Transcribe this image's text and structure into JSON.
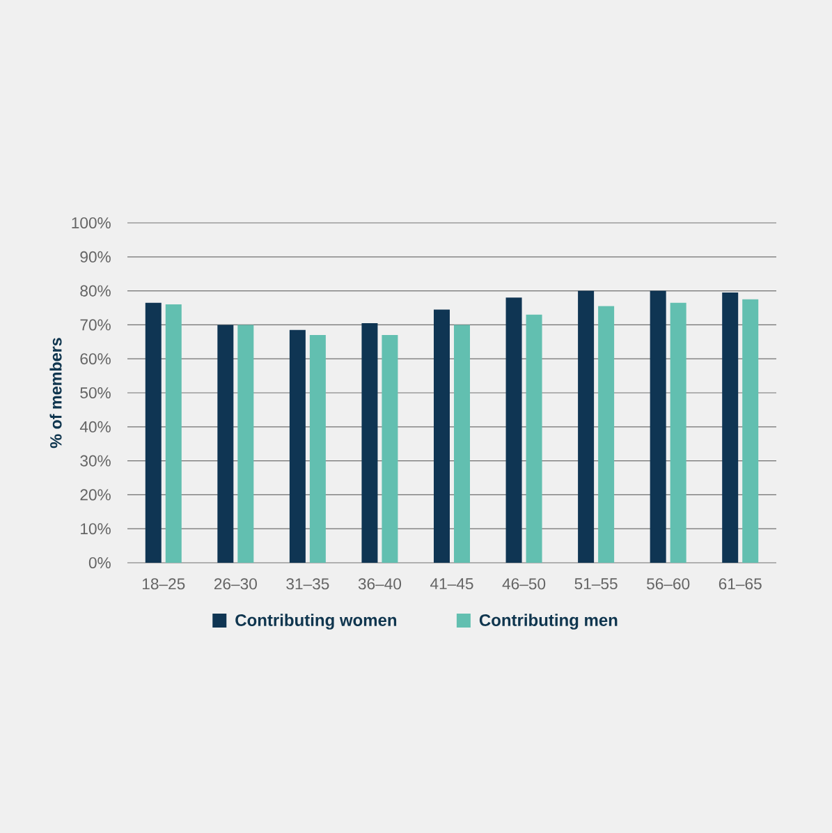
{
  "chart_data": {
    "type": "bar",
    "ylabel": "% of members",
    "categories": [
      "18–25",
      "26–30",
      "31–35",
      "36–40",
      "41–45",
      "46–50",
      "51–55",
      "56–60",
      "61–65"
    ],
    "series": [
      {
        "name": "Contributing women",
        "color": "#0f3553",
        "values": [
          76.5,
          70,
          68.5,
          70.5,
          74.5,
          78,
          80,
          80,
          79.5
        ]
      },
      {
        "name": "Contributing men",
        "color": "#62bfb0",
        "values": [
          76,
          70,
          67,
          67,
          70,
          73,
          75.5,
          76.5,
          77.5
        ]
      }
    ],
    "ylim": [
      0,
      100
    ],
    "yticks": [
      {
        "value": 0,
        "label": "0%"
      },
      {
        "value": 10,
        "label": "10%"
      },
      {
        "value": 20,
        "label": "20%"
      },
      {
        "value": 30,
        "label": "30%"
      },
      {
        "value": 40,
        "label": "40%"
      },
      {
        "value": 50,
        "label": "50%"
      },
      {
        "value": 60,
        "label": "60%"
      },
      {
        "value": 70,
        "label": "70%"
      },
      {
        "value": 80,
        "label": "80%"
      },
      {
        "value": 90,
        "label": "90%"
      },
      {
        "value": 100,
        "label": "100%"
      }
    ],
    "grid": "y",
    "legend": "bottom"
  }
}
